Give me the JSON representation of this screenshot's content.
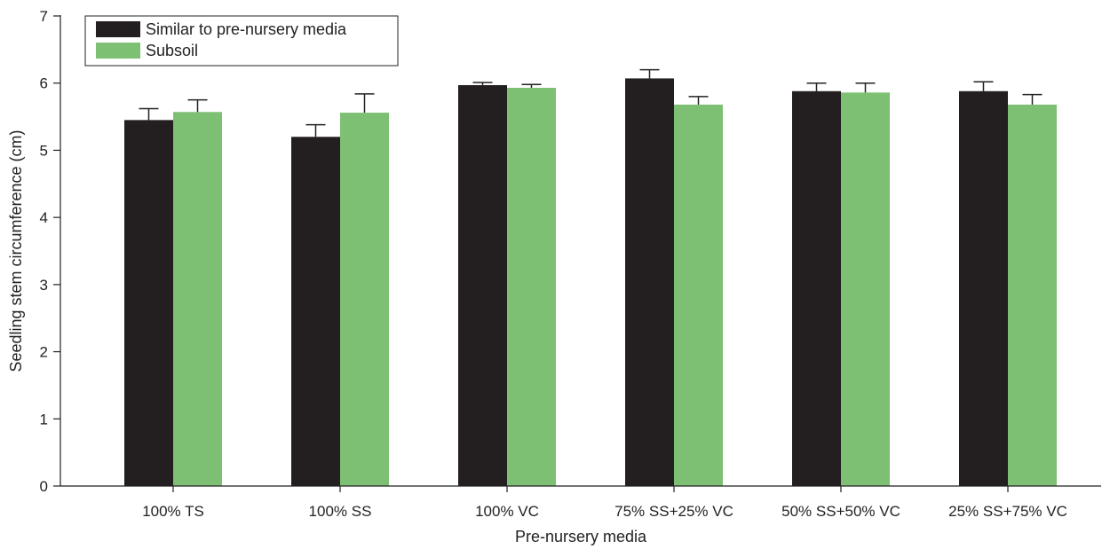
{
  "chart_data": {
    "type": "bar",
    "xlabel": "Pre-nursery media",
    "ylabel": "Seedling stem circumference (cm)",
    "ylim": [
      0,
      7
    ],
    "yticks": [
      0,
      1,
      2,
      3,
      4,
      5,
      6,
      7
    ],
    "grid": false,
    "legend": "top-left",
    "categories": [
      "100% TS",
      "100% SS",
      "100% VC",
      "75% SS+25% VC",
      "50% SS+50% VC",
      "25% SS+75% VC"
    ],
    "series": [
      {
        "name": "Similar to pre-nursery media",
        "color": "#231f20",
        "values": [
          5.45,
          5.2,
          5.97,
          6.07,
          5.88,
          5.88
        ],
        "errors": [
          0.17,
          0.18,
          0.04,
          0.13,
          0.12,
          0.14
        ]
      },
      {
        "name": "Subsoil",
        "color": "#7dc073",
        "values": [
          5.57,
          5.56,
          5.93,
          5.68,
          5.86,
          5.68
        ],
        "errors": [
          0.18,
          0.28,
          0.05,
          0.12,
          0.14,
          0.15
        ]
      }
    ]
  }
}
